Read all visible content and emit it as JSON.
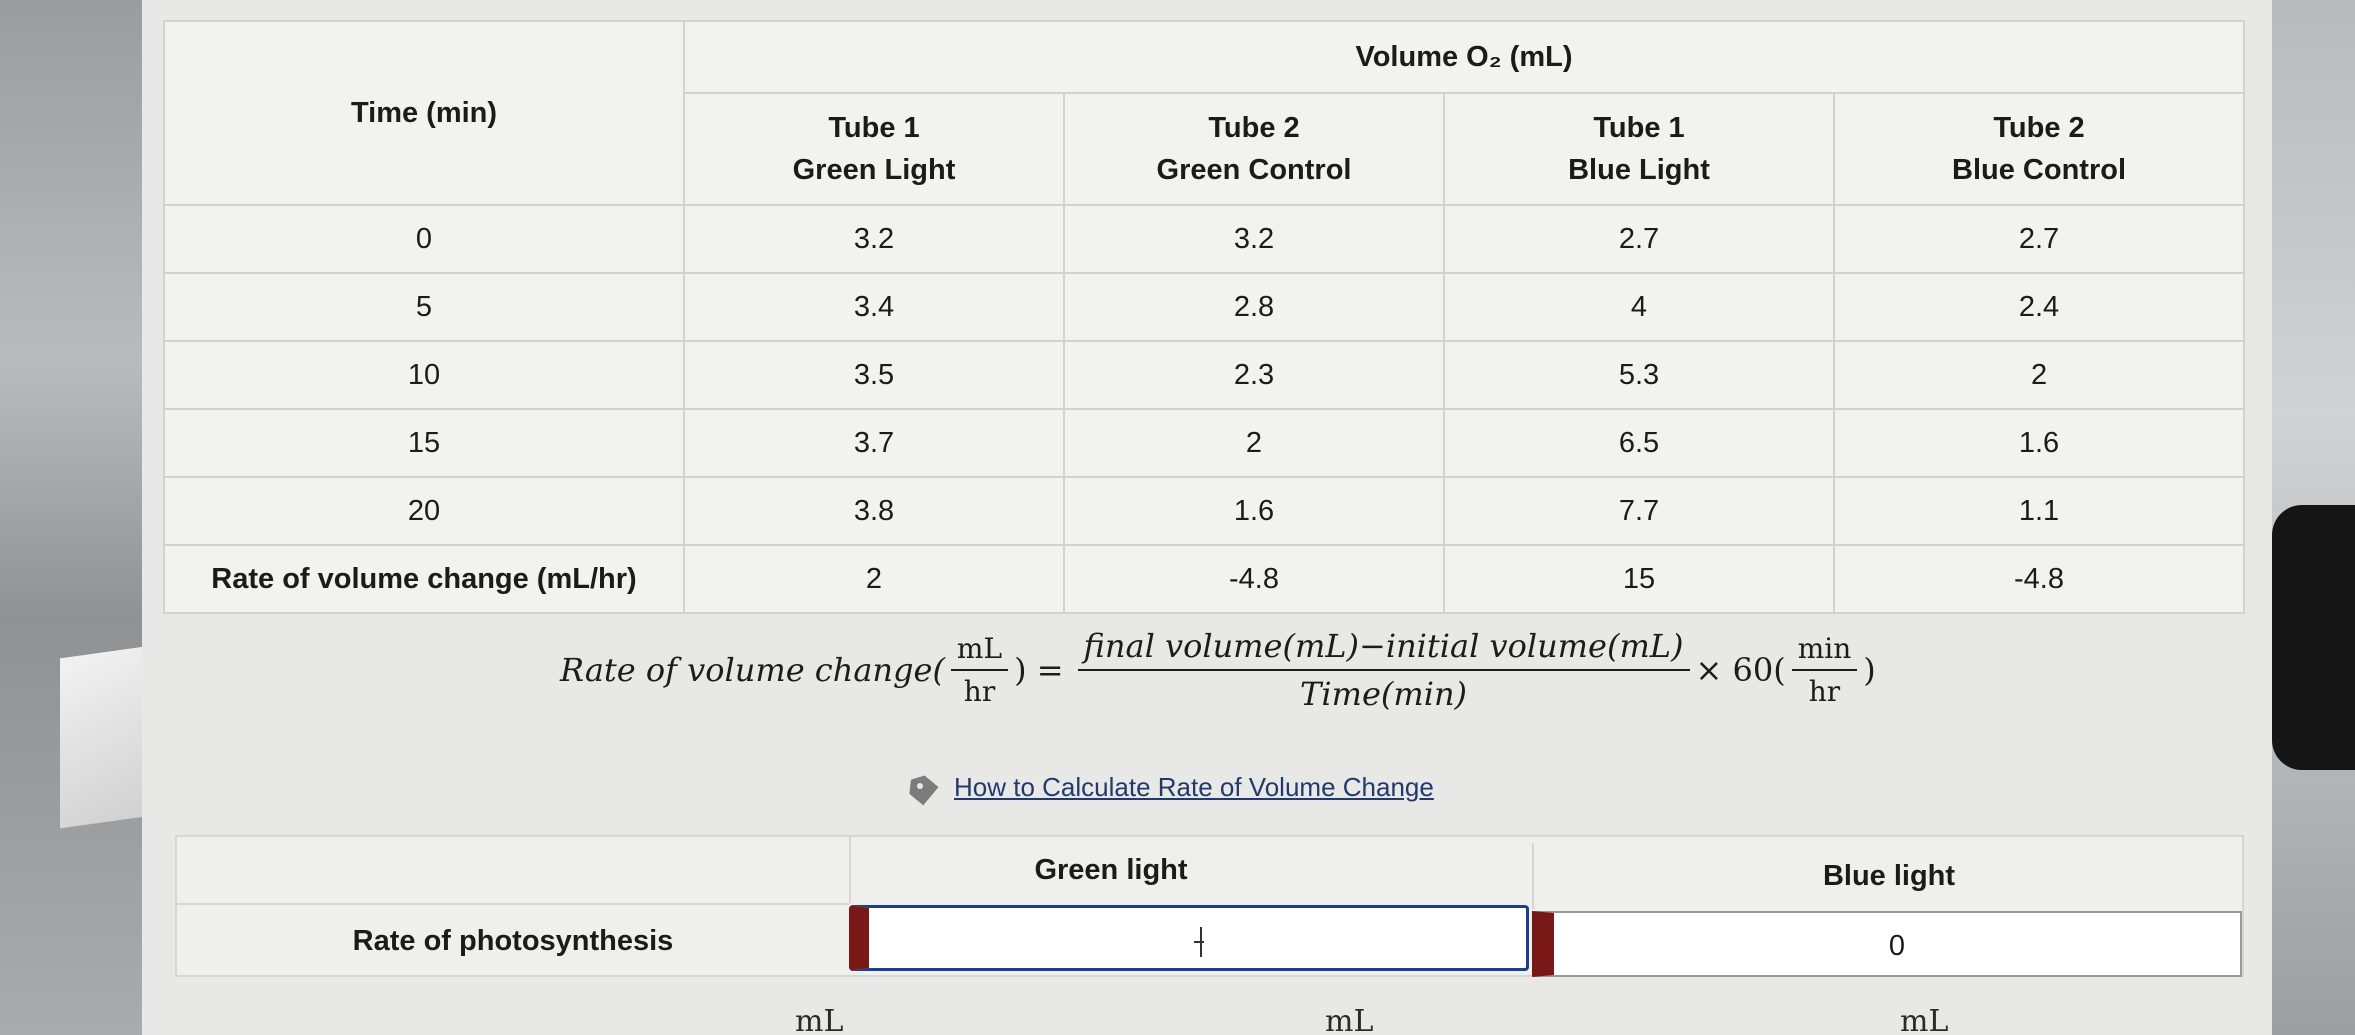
{
  "table": {
    "time_header": "Time (min)",
    "group_header": "Volume O₂ (mL)",
    "columns": [
      {
        "line1": "Tube 1",
        "line2": "Green Light"
      },
      {
        "line1": "Tube 2",
        "line2": "Green Control"
      },
      {
        "line1": "Tube 1",
        "line2": "Blue Light"
      },
      {
        "line1": "Tube 2",
        "line2": "Blue Control"
      }
    ],
    "rows": [
      {
        "time": "0",
        "values": [
          "3.2",
          "3.2",
          "2.7",
          "2.7"
        ]
      },
      {
        "time": "5",
        "values": [
          "3.4",
          "2.8",
          "4",
          "2.4"
        ]
      },
      {
        "time": "10",
        "values": [
          "3.5",
          "2.3",
          "5.3",
          "2"
        ]
      },
      {
        "time": "15",
        "values": [
          "3.7",
          "2",
          "6.5",
          "1.6"
        ]
      },
      {
        "time": "20",
        "values": [
          "3.8",
          "1.6",
          "7.7",
          "1.1"
        ]
      }
    ],
    "rate_row": {
      "label": "Rate of volume change (mL/hr)",
      "values": [
        "2",
        "-4.8",
        "15",
        "-4.8"
      ]
    }
  },
  "formula": {
    "lhs": "Rate of volume change(",
    "lhs_num": "mL",
    "lhs_den": "hr",
    "lhs_close": ") =",
    "rhs_num": "final volume(mL)−initial volume(mL)",
    "rhs_den": "Time(min)",
    "times": "× 60(",
    "conv_num": "min",
    "conv_den": "hr",
    "close": ")"
  },
  "help": {
    "link_text": "How to Calculate Rate of Volume Change",
    "icon": "tag-icon"
  },
  "answer": {
    "green_header": "Green light",
    "blue_header": "Blue light",
    "row_label": "Rate of photosynthesis",
    "green_value": "",
    "blue_value": "0"
  },
  "bottom_fragments": [
    "mL",
    "mL",
    "mL"
  ],
  "colors": {
    "link": "#23396e",
    "focus_border": "#1f3f8a",
    "input_marker": "#7a1818"
  }
}
